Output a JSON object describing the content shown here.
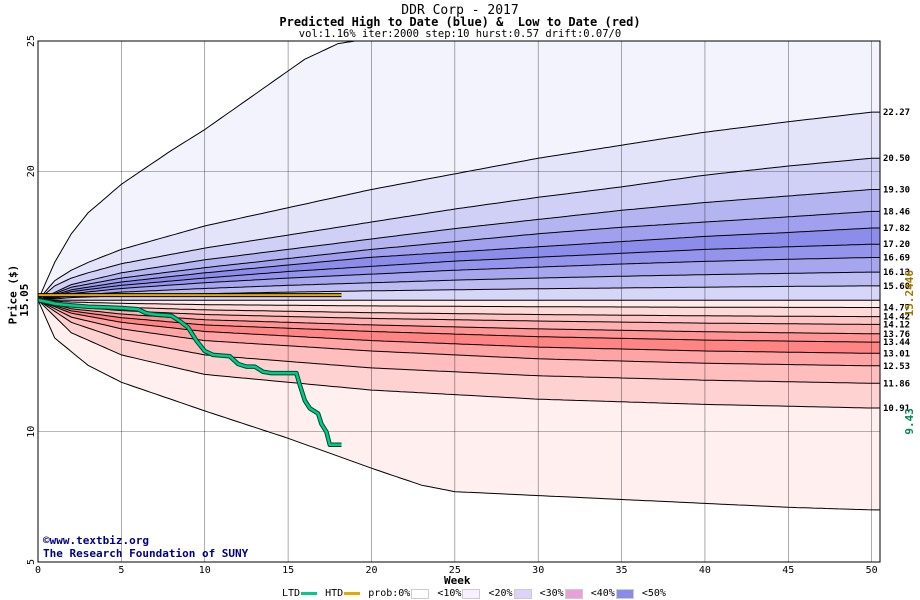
{
  "chart_data": {
    "type": "area",
    "title": "DDR Corp - 2017",
    "subtitle": "Predicted High to Date (blue) &  Low to Date (red)",
    "params": "vol:1.16% iter:2000 step:10 hurst:0.57 drift:0.07/0",
    "xlabel": "Week",
    "ylabel": "Price ($)",
    "xlim": [
      0,
      50.5
    ],
    "ylim": [
      5,
      25
    ],
    "x_ticks": [
      0,
      5,
      10,
      15,
      20,
      25,
      30,
      35,
      40,
      45,
      50
    ],
    "y_ticks": [
      5,
      10,
      15.05,
      20,
      25
    ],
    "grid": true,
    "start_price": 15.05,
    "start_price_label": "15.05",
    "high_bands": [
      {
        "name": "outer",
        "end": 25.0,
        "points": [
          [
            0,
            15.05
          ],
          [
            1,
            16.5
          ],
          [
            2,
            17.6
          ],
          [
            3,
            18.4
          ],
          [
            5,
            19.5
          ],
          [
            8,
            20.8
          ],
          [
            10,
            21.6
          ],
          [
            12,
            22.5
          ],
          [
            14,
            23.4
          ],
          [
            16,
            24.3
          ],
          [
            18,
            24.9
          ],
          [
            19,
            25.0
          ]
        ]
      },
      {
        "name": "22.27",
        "end": 22.27,
        "points": [
          [
            0,
            15.05
          ],
          [
            1,
            15.8
          ],
          [
            2,
            16.2
          ],
          [
            3,
            16.5
          ],
          [
            5,
            17.0
          ],
          [
            10,
            17.9
          ],
          [
            15,
            18.6
          ],
          [
            20,
            19.3
          ],
          [
            25,
            19.9
          ],
          [
            30,
            20.5
          ],
          [
            35,
            21.0
          ],
          [
            40,
            21.5
          ],
          [
            45,
            21.9
          ],
          [
            50,
            22.27
          ]
        ]
      },
      {
        "name": "20.50",
        "end": 20.5,
        "points": [
          [
            0,
            15.05
          ],
          [
            1,
            15.6
          ],
          [
            2,
            15.9
          ],
          [
            3,
            16.1
          ],
          [
            5,
            16.45
          ],
          [
            10,
            17.05
          ],
          [
            15,
            17.55
          ],
          [
            20,
            18.05
          ],
          [
            25,
            18.55
          ],
          [
            30,
            19.0
          ],
          [
            35,
            19.4
          ],
          [
            40,
            19.85
          ],
          [
            45,
            20.2
          ],
          [
            50,
            20.5
          ]
        ]
      },
      {
        "name": "19.30",
        "end": 19.3,
        "points": [
          [
            0,
            15.05
          ],
          [
            2,
            15.65
          ],
          [
            5,
            16.1
          ],
          [
            10,
            16.6
          ],
          [
            15,
            17.0
          ],
          [
            20,
            17.4
          ],
          [
            25,
            17.8
          ],
          [
            30,
            18.15
          ],
          [
            35,
            18.5
          ],
          [
            40,
            18.8
          ],
          [
            45,
            19.05
          ],
          [
            50,
            19.3
          ]
        ]
      },
      {
        "name": "18.46",
        "end": 18.46,
        "points": [
          [
            0,
            15.05
          ],
          [
            2,
            15.55
          ],
          [
            5,
            15.9
          ],
          [
            10,
            16.3
          ],
          [
            15,
            16.65
          ],
          [
            20,
            17.0
          ],
          [
            25,
            17.3
          ],
          [
            30,
            17.6
          ],
          [
            35,
            17.85
          ],
          [
            40,
            18.05
          ],
          [
            45,
            18.25
          ],
          [
            50,
            18.46
          ]
        ]
      },
      {
        "name": "17.82",
        "end": 17.82,
        "points": [
          [
            0,
            15.05
          ],
          [
            2,
            15.45
          ],
          [
            5,
            15.75
          ],
          [
            10,
            16.1
          ],
          [
            15,
            16.4
          ],
          [
            20,
            16.7
          ],
          [
            25,
            16.9
          ],
          [
            30,
            17.1
          ],
          [
            35,
            17.3
          ],
          [
            40,
            17.5
          ],
          [
            45,
            17.65
          ],
          [
            50,
            17.82
          ]
        ]
      },
      {
        "name": "17.20",
        "end": 17.2,
        "points": [
          [
            0,
            15.05
          ],
          [
            2,
            15.38
          ],
          [
            5,
            15.62
          ],
          [
            10,
            15.9
          ],
          [
            15,
            16.15
          ],
          [
            20,
            16.35
          ],
          [
            25,
            16.55
          ],
          [
            30,
            16.7
          ],
          [
            35,
            16.85
          ],
          [
            40,
            17.0
          ],
          [
            45,
            17.1
          ],
          [
            50,
            17.2
          ]
        ]
      },
      {
        "name": "16.69",
        "end": 16.69,
        "points": [
          [
            0,
            15.05
          ],
          [
            2,
            15.3
          ],
          [
            5,
            15.5
          ],
          [
            10,
            15.72
          ],
          [
            15,
            15.9
          ],
          [
            20,
            16.05
          ],
          [
            25,
            16.2
          ],
          [
            30,
            16.32
          ],
          [
            35,
            16.44
          ],
          [
            40,
            16.54
          ],
          [
            45,
            16.62
          ],
          [
            50,
            16.69
          ]
        ]
      },
      {
        "name": "16.13",
        "end": 16.13,
        "points": [
          [
            0,
            15.05
          ],
          [
            2,
            15.22
          ],
          [
            5,
            15.36
          ],
          [
            10,
            15.5
          ],
          [
            15,
            15.62
          ],
          [
            20,
            15.72
          ],
          [
            25,
            15.82
          ],
          [
            30,
            15.9
          ],
          [
            35,
            15.97
          ],
          [
            40,
            16.03
          ],
          [
            45,
            16.08
          ],
          [
            50,
            16.13
          ]
        ]
      },
      {
        "name": "15.60",
        "end": 15.6,
        "points": [
          [
            0,
            15.05
          ],
          [
            2,
            15.15
          ],
          [
            5,
            15.22
          ],
          [
            10,
            15.3
          ],
          [
            15,
            15.36
          ],
          [
            20,
            15.41
          ],
          [
            25,
            15.45
          ],
          [
            30,
            15.49
          ],
          [
            35,
            15.52
          ],
          [
            40,
            15.55
          ],
          [
            45,
            15.58
          ],
          [
            50,
            15.6
          ]
        ]
      },
      {
        "name": "base",
        "end": 15.05,
        "points": [
          [
            0,
            15.05
          ],
          [
            50.5,
            15.05
          ]
        ]
      }
    ],
    "low_bands": [
      {
        "name": "base",
        "end": 15.05,
        "points": [
          [
            0,
            15.05
          ],
          [
            50.5,
            15.05
          ]
        ]
      },
      {
        "name": "14.77",
        "end": 14.77,
        "points": [
          [
            0,
            15.05
          ],
          [
            2,
            14.98
          ],
          [
            5,
            14.93
          ],
          [
            10,
            14.88
          ],
          [
            20,
            14.83
          ],
          [
            30,
            14.8
          ],
          [
            40,
            14.78
          ],
          [
            50,
            14.77
          ]
        ]
      },
      {
        "name": "14.42",
        "end": 14.42,
        "points": [
          [
            0,
            15.05
          ],
          [
            2,
            14.88
          ],
          [
            5,
            14.78
          ],
          [
            10,
            14.68
          ],
          [
            20,
            14.57
          ],
          [
            30,
            14.5
          ],
          [
            40,
            14.45
          ],
          [
            50,
            14.42
          ]
        ]
      },
      {
        "name": "14.12",
        "end": 14.12,
        "points": [
          [
            0,
            15.05
          ],
          [
            2,
            14.8
          ],
          [
            5,
            14.65
          ],
          [
            10,
            14.5
          ],
          [
            20,
            14.35
          ],
          [
            30,
            14.25
          ],
          [
            40,
            14.17
          ],
          [
            50,
            14.12
          ]
        ]
      },
      {
        "name": "13.76",
        "end": 13.76,
        "points": [
          [
            0,
            15.05
          ],
          [
            2,
            14.72
          ],
          [
            5,
            14.52
          ],
          [
            10,
            14.3
          ],
          [
            20,
            14.1
          ],
          [
            30,
            13.95
          ],
          [
            40,
            13.84
          ],
          [
            50,
            13.76
          ]
        ]
      },
      {
        "name": "13.44",
        "end": 13.44,
        "points": [
          [
            0,
            15.05
          ],
          [
            2,
            14.64
          ],
          [
            5,
            14.38
          ],
          [
            10,
            14.1
          ],
          [
            20,
            13.85
          ],
          [
            30,
            13.65
          ],
          [
            40,
            13.52
          ],
          [
            50,
            13.44
          ]
        ]
      },
      {
        "name": "13.01",
        "end": 13.01,
        "points": [
          [
            0,
            15.05
          ],
          [
            2,
            14.55
          ],
          [
            5,
            14.2
          ],
          [
            10,
            13.85
          ],
          [
            20,
            13.5
          ],
          [
            30,
            13.25
          ],
          [
            40,
            13.1
          ],
          [
            50,
            13.01
          ]
        ]
      },
      {
        "name": "12.53",
        "end": 12.53,
        "points": [
          [
            0,
            15.05
          ],
          [
            2,
            14.4
          ],
          [
            5,
            13.95
          ],
          [
            10,
            13.5
          ],
          [
            20,
            13.1
          ],
          [
            30,
            12.8
          ],
          [
            40,
            12.63
          ],
          [
            50,
            12.53
          ]
        ]
      },
      {
        "name": "11.86",
        "end": 11.86,
        "points": [
          [
            0,
            15.05
          ],
          [
            2,
            14.2
          ],
          [
            5,
            13.55
          ],
          [
            10,
            12.95
          ],
          [
            20,
            12.45
          ],
          [
            30,
            12.15
          ],
          [
            40,
            11.98
          ],
          [
            50,
            11.86
          ]
        ]
      },
      {
        "name": "10.91",
        "end": 10.91,
        "points": [
          [
            0,
            15.05
          ],
          [
            2,
            13.8
          ],
          [
            5,
            12.95
          ],
          [
            10,
            12.2
          ],
          [
            20,
            11.6
          ],
          [
            30,
            11.25
          ],
          [
            40,
            11.05
          ],
          [
            50,
            10.91
          ]
        ]
      },
      {
        "name": "outer",
        "end": 7.0,
        "points": [
          [
            0,
            15.05
          ],
          [
            1,
            13.6
          ],
          [
            3,
            12.55
          ],
          [
            5,
            11.9
          ],
          [
            10,
            10.8
          ],
          [
            15,
            9.75
          ],
          [
            20,
            8.6
          ],
          [
            23,
            7.95
          ],
          [
            25,
            7.7
          ],
          [
            30,
            7.55
          ],
          [
            35,
            7.4
          ],
          [
            40,
            7.25
          ],
          [
            45,
            7.1
          ],
          [
            50,
            7.0
          ]
        ]
      }
    ],
    "high_fills": [
      "#f3f3fd",
      "#e3e3f9",
      "#d0d0f6",
      "#b4b4f1",
      "#a0a0ee",
      "#8c8cea",
      "#9494ec",
      "#a6a6ef",
      "#bcbcf3",
      "#d6d6f8"
    ],
    "low_fills": [
      "#ffeaea",
      "#ffd8d8",
      "#ffc4c4",
      "#ffb0b0",
      "#ff9494",
      "#ff8484",
      "#ffa4a4",
      "#ffbdbd",
      "#ffd2d2",
      "#ffefef"
    ],
    "band_labels_right": [
      "22.27",
      "20.50",
      "19.30",
      "18.46",
      "17.82",
      "17.20",
      "16.69",
      "16.13",
      "15.60",
      "14.77",
      "14.42",
      "14.12",
      "13.76",
      "13.44",
      "13.01",
      "12.53",
      "11.86",
      "10.91"
    ],
    "hline": {
      "label": "15.2446",
      "value": 15.2446,
      "x_end": 18.2,
      "color": "#e8a800"
    },
    "ltd_label": "9.43",
    "ltd_color": "#00cc88",
    "ltd": [
      [
        0,
        15.05
      ],
      [
        0.6,
        14.98
      ],
      [
        1,
        14.92
      ],
      [
        1.5,
        14.88
      ],
      [
        2,
        14.85
      ],
      [
        3,
        14.8
      ],
      [
        4,
        14.78
      ],
      [
        5,
        14.75
      ],
      [
        6,
        14.7
      ],
      [
        6.5,
        14.55
      ],
      [
        7,
        14.5
      ],
      [
        8,
        14.45
      ],
      [
        8.5,
        14.25
      ],
      [
        9,
        14.0
      ],
      [
        9.5,
        13.5
      ],
      [
        10,
        13.1
      ],
      [
        10.5,
        12.95
      ],
      [
        11.5,
        12.9
      ],
      [
        12,
        12.6
      ],
      [
        12.5,
        12.5
      ],
      [
        13,
        12.5
      ],
      [
        13.5,
        12.3
      ],
      [
        14,
        12.25
      ],
      [
        15.5,
        12.25
      ],
      [
        15.7,
        11.8
      ],
      [
        16,
        11.2
      ],
      [
        16.3,
        10.9
      ],
      [
        16.8,
        10.7
      ],
      [
        17,
        10.3
      ],
      [
        17.3,
        10.0
      ],
      [
        17.5,
        9.5
      ],
      [
        18.2,
        9.5
      ]
    ],
    "legend": {
      "ltd": "LTD",
      "htd": "HTD",
      "prob": "prob:0%",
      "items": [
        "<10%",
        "<20%",
        "<30%",
        "<40%",
        "<50%"
      ],
      "swatches": [
        "#ffffff",
        "#f6f0ff",
        "#dcd4f8",
        "#e8a0d8",
        "#8a8ae8"
      ]
    },
    "credit_line1": "www.textbiz.org",
    "credit_line2": "The Research Foundation of SUNY",
    "credit_symbol": "©"
  }
}
